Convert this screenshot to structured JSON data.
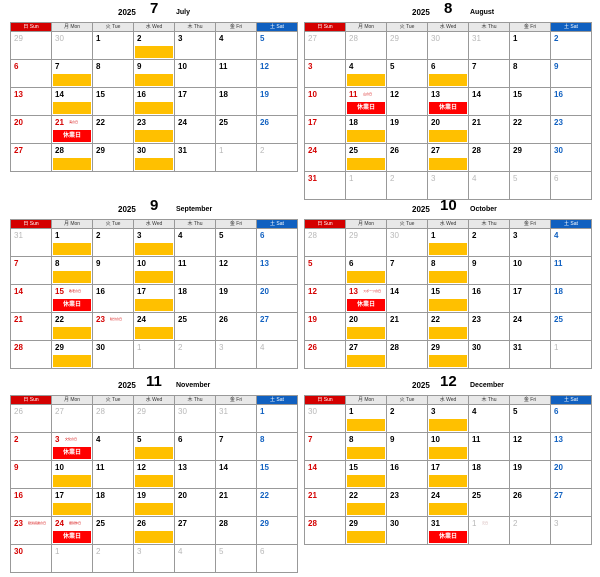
{
  "closed_label": "休業日",
  "weekdays": [
    "日 Sun",
    "月 Mon",
    "火 Tue",
    "水 Wed",
    "木 Thu",
    "金 Fri",
    "土 Sat"
  ],
  "months": [
    {
      "year": "2025",
      "num": "7",
      "name": "July",
      "weeks": [
        [
          {
            "d": "29",
            "o": 1
          },
          {
            "d": "30",
            "o": 1
          },
          {
            "d": "1"
          },
          {
            "d": "2",
            "b": 1
          },
          {
            "d": "3"
          },
          {
            "d": "4"
          },
          {
            "d": "5"
          }
        ],
        [
          {
            "d": "6"
          },
          {
            "d": "7",
            "b": 1
          },
          {
            "d": "8"
          },
          {
            "d": "9",
            "b": 1
          },
          {
            "d": "10"
          },
          {
            "d": "11"
          },
          {
            "d": "12"
          }
        ],
        [
          {
            "d": "13"
          },
          {
            "d": "14",
            "b": 1
          },
          {
            "d": "15"
          },
          {
            "d": "16",
            "b": 1
          },
          {
            "d": "17"
          },
          {
            "d": "18"
          },
          {
            "d": "19"
          }
        ],
        [
          {
            "d": "20"
          },
          {
            "d": "21",
            "h": 1,
            "n": "海の日",
            "c": 1
          },
          {
            "d": "22"
          },
          {
            "d": "23",
            "b": 1
          },
          {
            "d": "24"
          },
          {
            "d": "25"
          },
          {
            "d": "26"
          }
        ],
        [
          {
            "d": "27"
          },
          {
            "d": "28",
            "b": 1
          },
          {
            "d": "29"
          },
          {
            "d": "30",
            "b": 1
          },
          {
            "d": "31"
          },
          {
            "d": "1",
            "o": 1
          },
          {
            "d": "2",
            "o": 1
          }
        ]
      ]
    },
    {
      "year": "2025",
      "num": "8",
      "name": "August",
      "weeks": [
        [
          {
            "d": "27",
            "o": 1
          },
          {
            "d": "28",
            "o": 1
          },
          {
            "d": "29",
            "o": 1
          },
          {
            "d": "30",
            "o": 1
          },
          {
            "d": "31",
            "o": 1
          },
          {
            "d": "1"
          },
          {
            "d": "2"
          }
        ],
        [
          {
            "d": "3"
          },
          {
            "d": "4",
            "b": 1
          },
          {
            "d": "5"
          },
          {
            "d": "6",
            "b": 1
          },
          {
            "d": "7"
          },
          {
            "d": "8"
          },
          {
            "d": "9"
          }
        ],
        [
          {
            "d": "10"
          },
          {
            "d": "11",
            "h": 1,
            "n": "山の日",
            "c": 1
          },
          {
            "d": "12"
          },
          {
            "d": "13",
            "c": 1
          },
          {
            "d": "14"
          },
          {
            "d": "15"
          },
          {
            "d": "16"
          }
        ],
        [
          {
            "d": "17"
          },
          {
            "d": "18",
            "b": 1
          },
          {
            "d": "19"
          },
          {
            "d": "20",
            "b": 1
          },
          {
            "d": "21"
          },
          {
            "d": "22"
          },
          {
            "d": "23"
          }
        ],
        [
          {
            "d": "24"
          },
          {
            "d": "25",
            "b": 1
          },
          {
            "d": "26"
          },
          {
            "d": "27",
            "b": 1
          },
          {
            "d": "28"
          },
          {
            "d": "29"
          },
          {
            "d": "30"
          }
        ],
        [
          {
            "d": "31"
          },
          {
            "d": "1",
            "o": 1
          },
          {
            "d": "2",
            "o": 1
          },
          {
            "d": "3",
            "o": 1
          },
          {
            "d": "4",
            "o": 1
          },
          {
            "d": "5",
            "o": 1
          },
          {
            "d": "6",
            "o": 1
          }
        ]
      ]
    },
    {
      "year": "2025",
      "num": "9",
      "name": "September",
      "weeks": [
        [
          {
            "d": "31",
            "o": 1
          },
          {
            "d": "1",
            "b": 1
          },
          {
            "d": "2"
          },
          {
            "d": "3",
            "b": 1
          },
          {
            "d": "4"
          },
          {
            "d": "5"
          },
          {
            "d": "6"
          }
        ],
        [
          {
            "d": "7"
          },
          {
            "d": "8",
            "b": 1
          },
          {
            "d": "9"
          },
          {
            "d": "10",
            "b": 1
          },
          {
            "d": "11"
          },
          {
            "d": "12"
          },
          {
            "d": "13"
          }
        ],
        [
          {
            "d": "14"
          },
          {
            "d": "15",
            "h": 1,
            "n": "敬老の日",
            "c": 1
          },
          {
            "d": "16"
          },
          {
            "d": "17",
            "b": 1
          },
          {
            "d": "18"
          },
          {
            "d": "19"
          },
          {
            "d": "20"
          }
        ],
        [
          {
            "d": "21"
          },
          {
            "d": "22",
            "b": 1
          },
          {
            "d": "23",
            "h": 1,
            "n": "秋分の日"
          },
          {
            "d": "24",
            "b": 1
          },
          {
            "d": "25"
          },
          {
            "d": "26"
          },
          {
            "d": "27"
          }
        ],
        [
          {
            "d": "28"
          },
          {
            "d": "29",
            "b": 1
          },
          {
            "d": "30"
          },
          {
            "d": "1",
            "o": 1
          },
          {
            "d": "2",
            "o": 1
          },
          {
            "d": "3",
            "o": 1
          },
          {
            "d": "4",
            "o": 1
          }
        ]
      ]
    },
    {
      "year": "2025",
      "num": "10",
      "name": "October",
      "weeks": [
        [
          {
            "d": "28",
            "o": 1
          },
          {
            "d": "29",
            "o": 1
          },
          {
            "d": "30",
            "o": 1
          },
          {
            "d": "1",
            "b": 1
          },
          {
            "d": "2"
          },
          {
            "d": "3"
          },
          {
            "d": "4"
          }
        ],
        [
          {
            "d": "5"
          },
          {
            "d": "6",
            "b": 1
          },
          {
            "d": "7"
          },
          {
            "d": "8",
            "b": 1
          },
          {
            "d": "9"
          },
          {
            "d": "10"
          },
          {
            "d": "11"
          }
        ],
        [
          {
            "d": "12"
          },
          {
            "d": "13",
            "h": 1,
            "n": "スポーツの日",
            "c": 1
          },
          {
            "d": "14"
          },
          {
            "d": "15",
            "b": 1
          },
          {
            "d": "16"
          },
          {
            "d": "17"
          },
          {
            "d": "18"
          }
        ],
        [
          {
            "d": "19"
          },
          {
            "d": "20",
            "b": 1
          },
          {
            "d": "21"
          },
          {
            "d": "22",
            "b": 1
          },
          {
            "d": "23"
          },
          {
            "d": "24"
          },
          {
            "d": "25"
          }
        ],
        [
          {
            "d": "26"
          },
          {
            "d": "27",
            "b": 1
          },
          {
            "d": "28"
          },
          {
            "d": "29",
            "b": 1
          },
          {
            "d": "30"
          },
          {
            "d": "31"
          },
          {
            "d": "1",
            "o": 1
          }
        ]
      ]
    },
    {
      "year": "2025",
      "num": "11",
      "name": "November",
      "weeks": [
        [
          {
            "d": "26",
            "o": 1
          },
          {
            "d": "27",
            "o": 1
          },
          {
            "d": "28",
            "o": 1
          },
          {
            "d": "29",
            "o": 1
          },
          {
            "d": "30",
            "o": 1
          },
          {
            "d": "31",
            "o": 1
          },
          {
            "d": "1"
          }
        ],
        [
          {
            "d": "2"
          },
          {
            "d": "3",
            "h": 1,
            "n": "文化の日",
            "c": 1
          },
          {
            "d": "4"
          },
          {
            "d": "5",
            "b": 1
          },
          {
            "d": "6"
          },
          {
            "d": "7"
          },
          {
            "d": "8"
          }
        ],
        [
          {
            "d": "9"
          },
          {
            "d": "10",
            "b": 1
          },
          {
            "d": "11"
          },
          {
            "d": "12",
            "b": 1
          },
          {
            "d": "13"
          },
          {
            "d": "14"
          },
          {
            "d": "15"
          }
        ],
        [
          {
            "d": "16"
          },
          {
            "d": "17",
            "b": 1
          },
          {
            "d": "18"
          },
          {
            "d": "19",
            "b": 1
          },
          {
            "d": "20"
          },
          {
            "d": "21"
          },
          {
            "d": "22"
          }
        ],
        [
          {
            "d": "23",
            "n": "勤労感謝の日"
          },
          {
            "d": "24",
            "h": 1,
            "n": "振替休日",
            "c": 1
          },
          {
            "d": "25"
          },
          {
            "d": "26",
            "b": 1
          },
          {
            "d": "27"
          },
          {
            "d": "28"
          },
          {
            "d": "29"
          }
        ],
        [
          {
            "d": "30"
          },
          {
            "d": "1",
            "o": 1
          },
          {
            "d": "2",
            "o": 1
          },
          {
            "d": "3",
            "o": 1
          },
          {
            "d": "4",
            "o": 1
          },
          {
            "d": "5",
            "o": 1
          },
          {
            "d": "6",
            "o": 1
          }
        ]
      ]
    },
    {
      "year": "2025",
      "num": "12",
      "name": "December",
      "weeks": [
        [
          {
            "d": "30",
            "o": 1
          },
          {
            "d": "1",
            "b": 1
          },
          {
            "d": "2"
          },
          {
            "d": "3",
            "b": 1
          },
          {
            "d": "4"
          },
          {
            "d": "5"
          },
          {
            "d": "6"
          }
        ],
        [
          {
            "d": "7"
          },
          {
            "d": "8",
            "b": 1
          },
          {
            "d": "9"
          },
          {
            "d": "10",
            "b": 1
          },
          {
            "d": "11"
          },
          {
            "d": "12"
          },
          {
            "d": "13"
          }
        ],
        [
          {
            "d": "14"
          },
          {
            "d": "15",
            "b": 1
          },
          {
            "d": "16"
          },
          {
            "d": "17",
            "b": 1
          },
          {
            "d": "18"
          },
          {
            "d": "19"
          },
          {
            "d": "20"
          }
        ],
        [
          {
            "d": "21"
          },
          {
            "d": "22",
            "b": 1
          },
          {
            "d": "23"
          },
          {
            "d": "24",
            "b": 1
          },
          {
            "d": "25"
          },
          {
            "d": "26"
          },
          {
            "d": "27"
          }
        ],
        [
          {
            "d": "28"
          },
          {
            "d": "29",
            "b": 1
          },
          {
            "d": "30"
          },
          {
            "d": "31",
            "c": 1
          },
          {
            "d": "1",
            "o": 1,
            "n": "元日"
          },
          {
            "d": "2",
            "o": 1
          },
          {
            "d": "3",
            "o": 1
          }
        ]
      ]
    }
  ]
}
